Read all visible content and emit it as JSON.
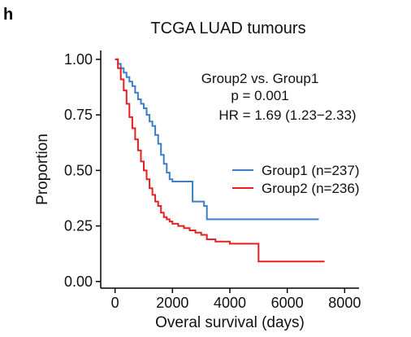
{
  "panel_label": "h",
  "chart_data": {
    "type": "line",
    "title": "TCGA LUAD tumours",
    "xlabel": "Overal survival (days)",
    "ylabel": "Proportion",
    "xlim": [
      -500,
      8500
    ],
    "ylim": [
      -0.03,
      1.04
    ],
    "x_ticks": [
      0,
      2000,
      4000,
      6000,
      8000
    ],
    "y_ticks": [
      0.0,
      0.25,
      0.5,
      0.75,
      1.0
    ],
    "x_tick_labels": [
      "0",
      "2000",
      "4000",
      "6000",
      "8000"
    ],
    "y_tick_labels": [
      "0.00",
      "0.25",
      "0.50",
      "0.75",
      "1.00"
    ],
    "grid": false,
    "legend_position": "right",
    "annotations": [
      "Group2 vs. Group1",
      "p = 0.001",
      "HR = 1.69 (1.23−2.33)"
    ],
    "series": [
      {
        "name": "Group1 (n=237)",
        "color": "#3a7dc9",
        "x": [
          0,
          100,
          200,
          300,
          400,
          500,
          600,
          700,
          800,
          900,
          1000,
          1100,
          1200,
          1300,
          1400,
          1500,
          1600,
          1700,
          1800,
          1900,
          2000,
          2100,
          2300,
          2500,
          2650,
          2700,
          2900,
          3100,
          3200,
          3500,
          4000,
          5000,
          6000,
          7000,
          7100
        ],
        "y": [
          1.0,
          0.98,
          0.96,
          0.94,
          0.92,
          0.9,
          0.88,
          0.85,
          0.82,
          0.8,
          0.78,
          0.75,
          0.72,
          0.7,
          0.66,
          0.62,
          0.57,
          0.53,
          0.49,
          0.46,
          0.45,
          0.45,
          0.45,
          0.45,
          0.45,
          0.36,
          0.36,
          0.34,
          0.28,
          0.28,
          0.28,
          0.28,
          0.28,
          0.28,
          0.28
        ]
      },
      {
        "name": "Group2 (n=236)",
        "color": "#e62020",
        "x": [
          0,
          100,
          200,
          300,
          400,
          500,
          600,
          700,
          800,
          900,
          1000,
          1100,
          1200,
          1300,
          1400,
          1500,
          1600,
          1700,
          1800,
          1900,
          2000,
          2200,
          2400,
          2600,
          2800,
          3000,
          3200,
          3500,
          4000,
          4500,
          4950,
          5000,
          6000,
          7000,
          7300
        ],
        "y": [
          1.0,
          0.96,
          0.91,
          0.86,
          0.8,
          0.74,
          0.69,
          0.64,
          0.59,
          0.54,
          0.5,
          0.46,
          0.42,
          0.39,
          0.36,
          0.34,
          0.31,
          0.29,
          0.28,
          0.27,
          0.26,
          0.25,
          0.24,
          0.23,
          0.22,
          0.21,
          0.19,
          0.18,
          0.17,
          0.17,
          0.17,
          0.09,
          0.09,
          0.09,
          0.09
        ]
      }
    ]
  }
}
